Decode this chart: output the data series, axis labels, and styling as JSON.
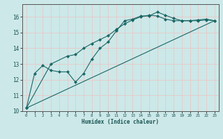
{
  "xlabel": "Humidex (Indice chaleur)",
  "background_color": "#cde8e8",
  "grid_color": "#e8c8c8",
  "line_color": "#1a6666",
  "xlim": [
    -0.5,
    23.5
  ],
  "ylim": [
    10,
    16.8
  ],
  "xticks": [
    0,
    1,
    2,
    3,
    4,
    5,
    6,
    7,
    8,
    9,
    10,
    11,
    12,
    13,
    14,
    15,
    16,
    17,
    18,
    19,
    20,
    21,
    22,
    23
  ],
  "yticks": [
    10,
    11,
    12,
    13,
    14,
    15,
    16
  ],
  "series1_x": [
    0,
    1,
    2,
    3,
    4,
    5,
    6,
    7,
    8,
    9,
    10,
    11,
    12,
    13,
    14,
    15,
    16,
    17,
    18,
    19,
    20,
    21,
    22,
    23
  ],
  "series1_y": [
    10.2,
    12.4,
    12.9,
    12.6,
    12.5,
    12.5,
    11.85,
    12.4,
    13.3,
    14.0,
    14.4,
    15.1,
    15.75,
    15.85,
    16.05,
    16.05,
    16.3,
    16.1,
    15.9,
    15.75,
    15.75,
    15.75,
    15.8,
    15.75
  ],
  "series2_x": [
    0,
    3,
    5,
    6,
    7,
    8,
    9,
    10,
    11,
    12,
    13,
    14,
    15,
    16,
    17,
    18,
    19,
    20,
    21,
    22,
    23
  ],
  "series2_y": [
    10.2,
    13.0,
    13.5,
    13.6,
    14.0,
    14.3,
    14.55,
    14.8,
    15.2,
    15.55,
    15.8,
    16.0,
    16.1,
    16.05,
    15.85,
    15.75,
    15.75,
    15.75,
    15.8,
    15.85,
    15.75
  ],
  "series3_x": [
    0,
    23
  ],
  "series3_y": [
    10.2,
    15.75
  ]
}
